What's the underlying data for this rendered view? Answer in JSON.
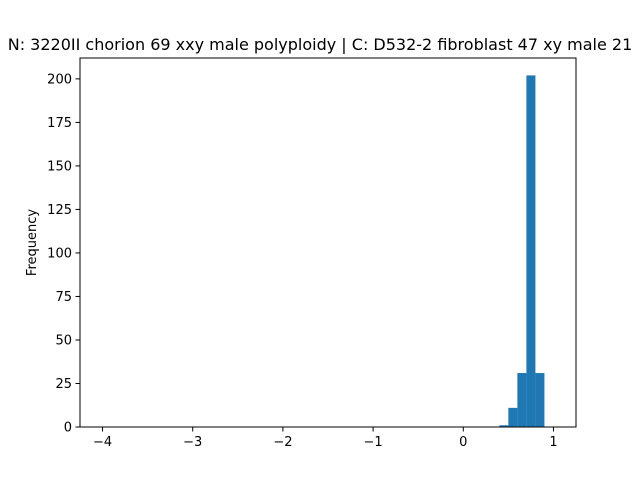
{
  "chart_data": {
    "type": "bar",
    "title": "N: 3220II chorion 69 xxy male polyploidy | C: D532-2 fibroblast 47 xy male 21",
    "xlabel": "",
    "ylabel": "Frequency",
    "xlim": [
      -4.25,
      1.25
    ],
    "ylim": [
      0,
      212
    ],
    "x_ticks": [
      -4,
      -3,
      -2,
      -1,
      0,
      1
    ],
    "y_ticks": [
      0,
      25,
      50,
      75,
      100,
      125,
      150,
      175,
      200
    ],
    "bin_width": 0.1,
    "bars": [
      {
        "x0": 0.4,
        "x1": 0.5,
        "value": 1
      },
      {
        "x0": 0.5,
        "x1": 0.6,
        "value": 11
      },
      {
        "x0": 0.6,
        "x1": 0.7,
        "value": 31
      },
      {
        "x0": 0.7,
        "x1": 0.8,
        "value": 202
      },
      {
        "x0": 0.8,
        "x1": 0.9,
        "value": 31
      }
    ],
    "bar_color": "#1f77b4",
    "grid": false,
    "legend": "none"
  }
}
